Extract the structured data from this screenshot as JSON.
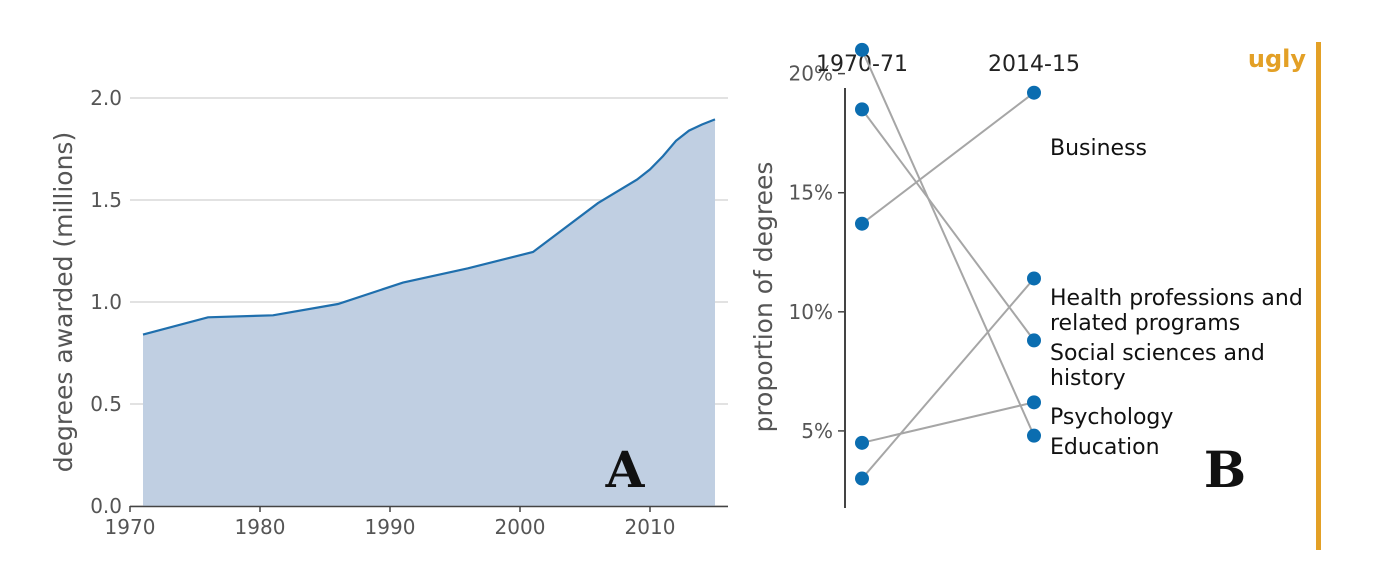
{
  "colors": {
    "area_fill": "#c0cfe2",
    "line": "#1f6fad",
    "point": "#0b6db0",
    "slope_line": "#a6a6a6",
    "grid": "#d9d9d9",
    "axis": "#444444",
    "ugly": "#e3a026"
  },
  "panel_a": {
    "label": "A",
    "ylabel": "degrees awarded (millions)"
  },
  "panel_b": {
    "label": "B",
    "ylabel": "proportion of degrees",
    "col_left": "1970-71",
    "col_right": "2014-15"
  },
  "badge": {
    "text": "ugly"
  },
  "chart_data": [
    {
      "type": "area",
      "title": "",
      "xlabel": "",
      "ylabel": "degrees awarded (millions)",
      "xlim": [
        1970,
        2016
      ],
      "ylim": [
        0,
        2.0
      ],
      "grid": true,
      "x_ticks": [
        "1970",
        "1980",
        "1990",
        "2000",
        "2010"
      ],
      "y_ticks": [
        "0.0",
        "0.5",
        "1.0",
        "1.5",
        "2.0"
      ],
      "x": [
        1971,
        1976,
        1981,
        1986,
        1991,
        1996,
        2001,
        2006,
        2009,
        2010,
        2011,
        2012,
        2013,
        2014,
        2015
      ],
      "values": [
        0.84,
        0.925,
        0.935,
        0.99,
        1.095,
        1.165,
        1.245,
        1.485,
        1.6,
        1.65,
        1.715,
        1.79,
        1.84,
        1.87,
        1.895
      ]
    },
    {
      "type": "line",
      "subtype": "slopegraph",
      "title": "",
      "ylabel": "proportion of degrees",
      "x": [
        "1970-71",
        "2014-15"
      ],
      "ylim": [
        0,
        22
      ],
      "y_ticks": [
        "5%",
        "10%",
        "15%",
        "20%"
      ],
      "series": [
        {
          "name": "Business",
          "values": [
            13.7,
            19.2
          ]
        },
        {
          "name": "Health professions and related programs",
          "values": [
            3.0,
            11.4
          ]
        },
        {
          "name": "Social sciences and history",
          "values": [
            18.5,
            8.8
          ]
        },
        {
          "name": "Psychology",
          "values": [
            4.5,
            6.2
          ]
        },
        {
          "name": "Education",
          "values": [
            21.0,
            4.8
          ]
        }
      ],
      "category_labels": [
        {
          "text": "Business"
        },
        {
          "text": "Health professions and"
        },
        {
          "text": "related programs"
        },
        {
          "text": "Social sciences and"
        },
        {
          "text": "history"
        },
        {
          "text": "Psychology"
        },
        {
          "text": "Education"
        }
      ]
    }
  ]
}
